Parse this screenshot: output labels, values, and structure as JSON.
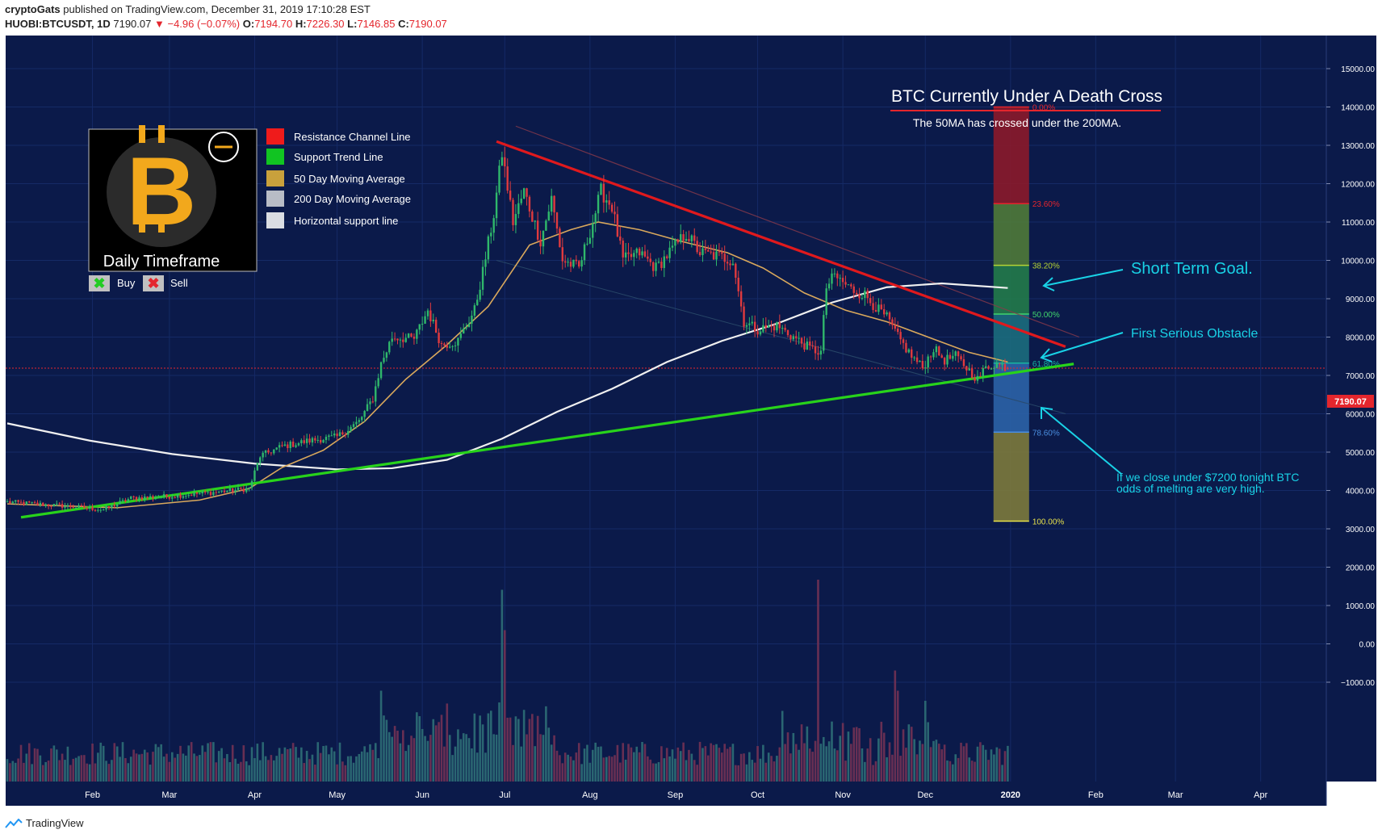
{
  "header": {
    "author": "cryptoGats",
    "published": "published on TradingView.com, December 31, 2019 17:10:28 EST",
    "symbol": "HUOBI:BTCUSDT, 1D",
    "last": "7190.07",
    "change": "−4.96 (−0.07%)",
    "o_label": "O:",
    "o": "7194.70",
    "h_label": "H:",
    "h": "7226.30",
    "l_label": "L:",
    "l": "7146.85",
    "c_label": "C:",
    "c": "7190.07"
  },
  "footer": {
    "brand": "TradingView"
  },
  "colors": {
    "background": "#0b1a4a",
    "grid": "#152a66",
    "up": "#26a69a",
    "down": "#ef5350",
    "ma50": "#d9a85c",
    "ma200": "#f0f0f0",
    "resistance": "#e0191d",
    "support": "#28d31b",
    "annotation": "#19d2e6",
    "price_line": "#e4262d"
  },
  "legend": {
    "items": [
      {
        "label": "Resistance Channel Line",
        "color": "#ef1b1b"
      },
      {
        "label": "Support Trend Line",
        "color": "#11c422"
      },
      {
        "label": "50 Day Moving Average",
        "color": "#c9a13c"
      },
      {
        "label": "200 Day Moving Average",
        "color": "#b8bcc6"
      },
      {
        "label": "Horizontal support line",
        "color": "#dadde3"
      }
    ],
    "buy_label": "Buy",
    "sell_label": "Sell"
  },
  "logo": {
    "caption": "Daily Timeframe",
    "glyph": "B"
  },
  "annotations": {
    "title": "BTC Currently Under A Death Cross",
    "subtitle": "The 50MA has crossed under the 200MA.",
    "short_term_goal": "Short Term Goal.",
    "first_obstacle": "First Serious Obstacle",
    "warning_line1": "If we close under $7200 tonight BTC",
    "warning_line2": "odds of melting are very high."
  },
  "chart_data": {
    "type": "candlestick",
    "symbol": "HUOBI:BTCUSDT",
    "interval": "1D",
    "last_price": 7190.07,
    "price_label": "7190.07",
    "y_axis": {
      "range": [
        -1900,
        15700
      ],
      "ticks": [
        -1000,
        0,
        1000,
        2000,
        3000,
        4000,
        5000,
        6000,
        7000,
        8000,
        9000,
        10000,
        11000,
        12000,
        13000,
        14000,
        15000
      ],
      "tick_labels": [
        "−1000.00",
        "0.00",
        "1000.00",
        "2000.00",
        "3000.00",
        "4000.00",
        "5000.00",
        "6000.00",
        "7000.00",
        "8000.00",
        "9000.00",
        "10000.00",
        "11000.00",
        "12000.00",
        "13000.00",
        "14000.00",
        "15000.00"
      ]
    },
    "x_axis": {
      "range": [
        0,
        455
      ],
      "ticks": [
        {
          "label": "Feb",
          "d": 31
        },
        {
          "label": "Mar",
          "d": 59
        },
        {
          "label": "Apr",
          "d": 90
        },
        {
          "label": "May",
          "d": 120
        },
        {
          "label": "Jun",
          "d": 151
        },
        {
          "label": "Jul",
          "d": 181
        },
        {
          "label": "Aug",
          "d": 212
        },
        {
          "label": "Sep",
          "d": 243
        },
        {
          "label": "Oct",
          "d": 273
        },
        {
          "label": "Nov",
          "d": 304
        },
        {
          "label": "Dec",
          "d": 334
        },
        {
          "label": "2020",
          "d": 365
        },
        {
          "label": "Feb",
          "d": 396
        },
        {
          "label": "Mar",
          "d": 425
        },
        {
          "label": "Apr",
          "d": 456
        }
      ],
      "unit": "day of 2019 (0 = Jan 1, 2019)"
    },
    "price_anchors": [
      [
        0,
        3700
      ],
      [
        20,
        3600
      ],
      [
        35,
        3500
      ],
      [
        45,
        3800
      ],
      [
        59,
        3850
      ],
      [
        75,
        3950
      ],
      [
        88,
        4050
      ],
      [
        92,
        4900
      ],
      [
        100,
        5150
      ],
      [
        110,
        5300
      ],
      [
        120,
        5400
      ],
      [
        128,
        5800
      ],
      [
        133,
        6400
      ],
      [
        136,
        7300
      ],
      [
        140,
        8000
      ],
      [
        148,
        7950
      ],
      [
        153,
        8700
      ],
      [
        158,
        7800
      ],
      [
        164,
        7900
      ],
      [
        170,
        8700
      ],
      [
        173,
        9700
      ],
      [
        177,
        11200
      ],
      [
        180,
        12800
      ],
      [
        184,
        11000
      ],
      [
        188,
        11800
      ],
      [
        194,
        10500
      ],
      [
        198,
        11600
      ],
      [
        202,
        10000
      ],
      [
        208,
        9800
      ],
      [
        213,
        11000
      ],
      [
        216,
        11800
      ],
      [
        220,
        11400
      ],
      [
        224,
        10000
      ],
      [
        230,
        10200
      ],
      [
        236,
        9800
      ],
      [
        242,
        10300
      ],
      [
        247,
        10700
      ],
      [
        252,
        10200
      ],
      [
        259,
        10100
      ],
      [
        264,
        10000
      ],
      [
        268,
        8400
      ],
      [
        273,
        8200
      ],
      [
        280,
        8300
      ],
      [
        286,
        8000
      ],
      [
        292,
        7700
      ],
      [
        296,
        7600
      ],
      [
        298,
        9300
      ],
      [
        301,
        9600
      ],
      [
        307,
        9250
      ],
      [
        312,
        9100
      ],
      [
        317,
        8700
      ],
      [
        320,
        8500
      ],
      [
        324,
        8000
      ],
      [
        329,
        7500
      ],
      [
        333,
        7200
      ],
      [
        337,
        7700
      ],
      [
        341,
        7400
      ],
      [
        345,
        7500
      ],
      [
        349,
        7200
      ],
      [
        353,
        6900
      ],
      [
        356,
        7200
      ],
      [
        359,
        7300
      ],
      [
        362,
        7250
      ],
      [
        364,
        7190
      ]
    ],
    "ma50_points": [
      [
        0,
        3650
      ],
      [
        40,
        3550
      ],
      [
        70,
        3750
      ],
      [
        88,
        4050
      ],
      [
        100,
        4600
      ],
      [
        115,
        5050
      ],
      [
        130,
        5800
      ],
      [
        145,
        6900
      ],
      [
        160,
        7800
      ],
      [
        175,
        8800
      ],
      [
        190,
        10400
      ],
      [
        205,
        10800
      ],
      [
        215,
        11000
      ],
      [
        230,
        10800
      ],
      [
        245,
        10500
      ],
      [
        262,
        10200
      ],
      [
        275,
        9800
      ],
      [
        290,
        9150
      ],
      [
        305,
        8700
      ],
      [
        320,
        8400
      ],
      [
        335,
        8000
      ],
      [
        350,
        7600
      ],
      [
        364,
        7350
      ]
    ],
    "ma200_points": [
      [
        0,
        5750
      ],
      [
        30,
        5300
      ],
      [
        60,
        4950
      ],
      [
        90,
        4700
      ],
      [
        120,
        4550
      ],
      [
        140,
        4580
      ],
      [
        160,
        4800
      ],
      [
        180,
        5350
      ],
      [
        200,
        6050
      ],
      [
        220,
        6650
      ],
      [
        240,
        7350
      ],
      [
        260,
        7900
      ],
      [
        280,
        8350
      ],
      [
        300,
        8900
      ],
      [
        320,
        9300
      ],
      [
        340,
        9400
      ],
      [
        364,
        9280
      ]
    ],
    "resistance_line": [
      [
        178,
        13100
      ],
      [
        385,
        7750
      ]
    ],
    "resistance_channel_upper": [
      [
        185,
        13500
      ],
      [
        390,
        8000
      ]
    ],
    "channel_lower": [
      [
        178,
        10000
      ],
      [
        385,
        6000
      ]
    ],
    "support_line": [
      [
        5,
        3300
      ],
      [
        388,
        7300
      ]
    ],
    "fibonacci": {
      "x_range": [
        350,
        365
      ],
      "levels": [
        {
          "label": "0.00%",
          "price": 14000,
          "color": "#e4262d"
        },
        {
          "label": "23.60%",
          "price": 11480,
          "color": "#e4262d"
        },
        {
          "label": "38.20%",
          "price": 9870,
          "color": "#b5d334"
        },
        {
          "label": "50.00%",
          "price": 8600,
          "color": "#40d36c"
        },
        {
          "label": "61.80%",
          "price": 7320,
          "color": "#17b49f"
        },
        {
          "label": "78.60%",
          "price": 5520,
          "color": "#4a8ee0"
        },
        {
          "label": "100.00%",
          "price": 3200,
          "color": "#e6e04a"
        }
      ],
      "band_colors": [
        "#8b1a2a",
        "#4f7a39",
        "#227b4a",
        "#1b6d7d",
        "#2b63a7",
        "#7c7a3c"
      ]
    },
    "volume_note": "volume bars shown in lower pane, relative scale",
    "volume_spikes": [
      [
        180,
        0.95
      ],
      [
        181,
        0.75
      ],
      [
        136,
        0.45
      ],
      [
        295,
        1.0
      ],
      [
        282,
        0.35
      ],
      [
        323,
        0.55
      ],
      [
        324,
        0.45
      ],
      [
        334,
        0.4
      ]
    ]
  }
}
